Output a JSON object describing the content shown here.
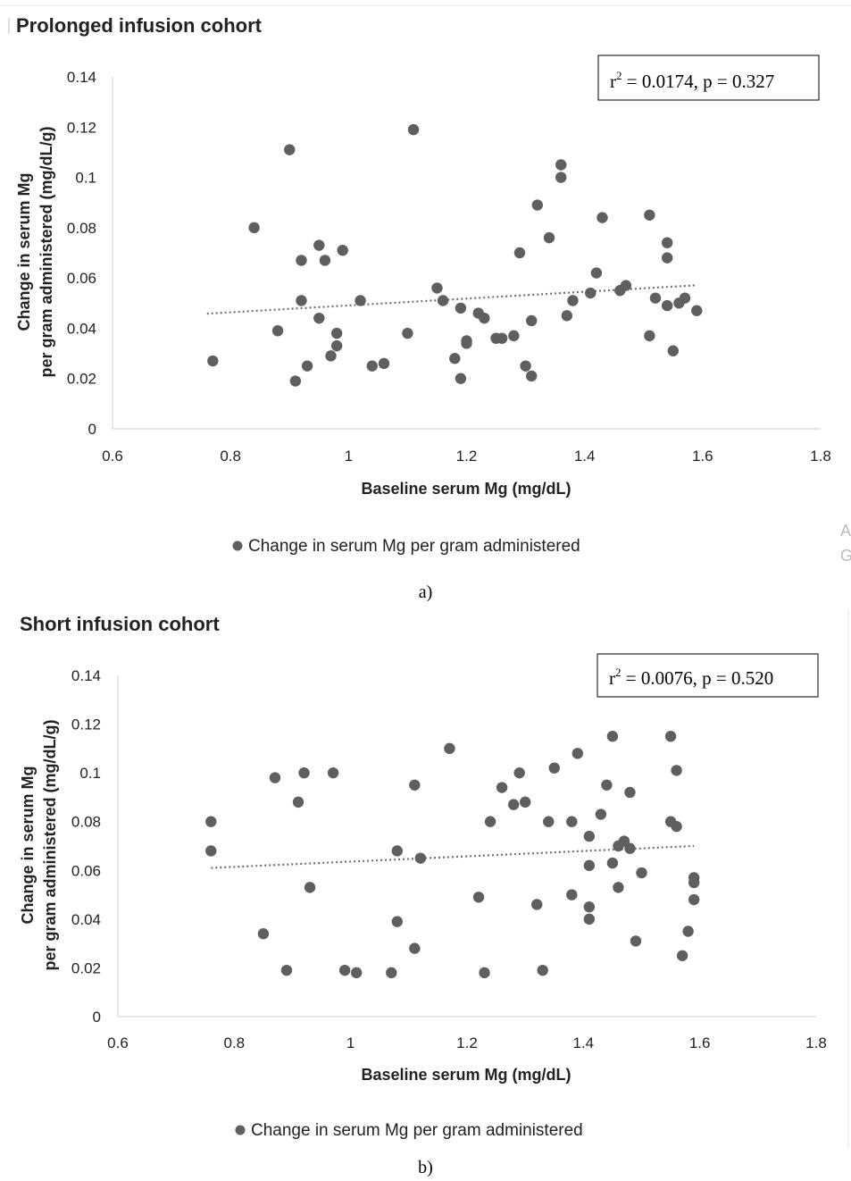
{
  "chart_data": [
    {
      "type": "scatter",
      "title": "Prolonged infusion cohort",
      "xlabel": "Baseline serum Mg (mg/dL)",
      "ylabel": [
        "Change in serum Mg",
        "per gram administered (mg/dL/g)"
      ],
      "xlim": [
        0.6,
        1.8
      ],
      "ylim": [
        0,
        0.14
      ],
      "x_ticks": [
        "0.6",
        "0.8",
        "1",
        "1.2",
        "1.4",
        "1.6",
        "1.8"
      ],
      "y_ticks": [
        "0",
        "0.02",
        "0.04",
        "0.06",
        "0.08",
        "0.1",
        "0.12",
        "0.14"
      ],
      "legend": "Change in serum Mg per gram administered",
      "legend_position": "bottom",
      "annotation": {
        "r2_value": "0.0174",
        "p_value": "0.327"
      },
      "trendline": {
        "type": "linear",
        "from": [
          0.76,
          0.0458
        ],
        "to": [
          1.59,
          0.0571
        ]
      },
      "series": [
        {
          "name": "Change in serum Mg per gram administered",
          "color": "#5f5f5f",
          "points": [
            [
              0.77,
              0.027
            ],
            [
              0.84,
              0.08
            ],
            [
              0.88,
              0.039
            ],
            [
              0.9,
              0.111
            ],
            [
              0.91,
              0.019
            ],
            [
              0.92,
              0.051
            ],
            [
              0.92,
              0.067
            ],
            [
              0.93,
              0.025
            ],
            [
              0.95,
              0.044
            ],
            [
              0.95,
              0.073
            ],
            [
              0.96,
              0.067
            ],
            [
              0.97,
              0.029
            ],
            [
              0.98,
              0.038
            ],
            [
              0.98,
              0.033
            ],
            [
              0.99,
              0.071
            ],
            [
              1.02,
              0.051
            ],
            [
              1.04,
              0.025
            ],
            [
              1.06,
              0.026
            ],
            [
              1.1,
              0.038
            ],
            [
              1.11,
              0.119
            ],
            [
              1.15,
              0.056
            ],
            [
              1.16,
              0.051
            ],
            [
              1.18,
              0.028
            ],
            [
              1.19,
              0.048
            ],
            [
              1.19,
              0.02
            ],
            [
              1.2,
              0.034
            ],
            [
              1.2,
              0.035
            ],
            [
              1.22,
              0.046
            ],
            [
              1.23,
              0.044
            ],
            [
              1.25,
              0.036
            ],
            [
              1.26,
              0.036
            ],
            [
              1.28,
              0.037
            ],
            [
              1.29,
              0.07
            ],
            [
              1.3,
              0.025
            ],
            [
              1.31,
              0.043
            ],
            [
              1.31,
              0.021
            ],
            [
              1.32,
              0.089
            ],
            [
              1.34,
              0.076
            ],
            [
              1.36,
              0.1
            ],
            [
              1.36,
              0.105
            ],
            [
              1.37,
              0.045
            ],
            [
              1.38,
              0.051
            ],
            [
              1.41,
              0.054
            ],
            [
              1.42,
              0.062
            ],
            [
              1.43,
              0.084
            ],
            [
              1.46,
              0.055
            ],
            [
              1.47,
              0.057
            ],
            [
              1.51,
              0.085
            ],
            [
              1.51,
              0.037
            ],
            [
              1.52,
              0.052
            ],
            [
              1.54,
              0.049
            ],
            [
              1.54,
              0.074
            ],
            [
              1.54,
              0.068
            ],
            [
              1.55,
              0.031
            ],
            [
              1.56,
              0.05
            ],
            [
              1.57,
              0.052
            ],
            [
              1.59,
              0.047
            ]
          ]
        }
      ]
    },
    {
      "type": "scatter",
      "title": "Short infusion cohort",
      "xlabel": "Baseline serum Mg (mg/dL)",
      "ylabel": [
        "Change in serum Mg",
        "per gram administered (mg/dL/g)"
      ],
      "xlim": [
        0.6,
        1.8
      ],
      "ylim": [
        0,
        0.14
      ],
      "x_ticks": [
        "0.6",
        "0.8",
        "1",
        "1.2",
        "1.4",
        "1.6",
        "1.8"
      ],
      "y_ticks": [
        "0",
        "0.02",
        "0.04",
        "0.06",
        "0.08",
        "0.1",
        "0.12",
        "0.14"
      ],
      "legend": "Change in serum Mg per gram administered",
      "legend_position": "bottom",
      "annotation": {
        "r2_value": "0.0076",
        "p_value": "0.520"
      },
      "trendline": {
        "type": "linear",
        "from": [
          0.76,
          0.061
        ],
        "to": [
          1.59,
          0.07
        ]
      },
      "series": [
        {
          "name": "Change in serum Mg per gram administered",
          "color": "#5f5f5f",
          "points": [
            [
              0.76,
              0.068
            ],
            [
              0.76,
              0.08
            ],
            [
              0.85,
              0.034
            ],
            [
              0.87,
              0.098
            ],
            [
              0.89,
              0.019
            ],
            [
              0.91,
              0.088
            ],
            [
              0.92,
              0.1
            ],
            [
              0.93,
              0.053
            ],
            [
              0.97,
              0.1
            ],
            [
              0.99,
              0.019
            ],
            [
              1.01,
              0.018
            ],
            [
              1.07,
              0.018
            ],
            [
              1.08,
              0.068
            ],
            [
              1.08,
              0.039
            ],
            [
              1.11,
              0.095
            ],
            [
              1.11,
              0.028
            ],
            [
              1.12,
              0.065
            ],
            [
              1.17,
              0.11
            ],
            [
              1.22,
              0.049
            ],
            [
              1.23,
              0.018
            ],
            [
              1.24,
              0.08
            ],
            [
              1.26,
              0.094
            ],
            [
              1.28,
              0.087
            ],
            [
              1.29,
              0.1
            ],
            [
              1.3,
              0.088
            ],
            [
              1.32,
              0.046
            ],
            [
              1.33,
              0.019
            ],
            [
              1.34,
              0.08
            ],
            [
              1.35,
              0.102
            ],
            [
              1.38,
              0.08
            ],
            [
              1.38,
              0.05
            ],
            [
              1.39,
              0.108
            ],
            [
              1.41,
              0.074
            ],
            [
              1.41,
              0.062
            ],
            [
              1.41,
              0.045
            ],
            [
              1.41,
              0.04
            ],
            [
              1.43,
              0.083
            ],
            [
              1.44,
              0.095
            ],
            [
              1.45,
              0.115
            ],
            [
              1.45,
              0.063
            ],
            [
              1.46,
              0.07
            ],
            [
              1.46,
              0.053
            ],
            [
              1.47,
              0.072
            ],
            [
              1.48,
              0.092
            ],
            [
              1.48,
              0.069
            ],
            [
              1.49,
              0.031
            ],
            [
              1.5,
              0.059
            ],
            [
              1.55,
              0.115
            ],
            [
              1.55,
              0.08
            ],
            [
              1.56,
              0.078
            ],
            [
              1.56,
              0.101
            ],
            [
              1.57,
              0.025
            ],
            [
              1.58,
              0.035
            ],
            [
              1.59,
              0.057
            ],
            [
              1.59,
              0.055
            ],
            [
              1.59,
              0.048
            ]
          ]
        }
      ]
    }
  ],
  "captions": {
    "a": "a)",
    "b": "b)"
  },
  "cropped_text": {
    "line1": "A",
    "line2": "G"
  }
}
